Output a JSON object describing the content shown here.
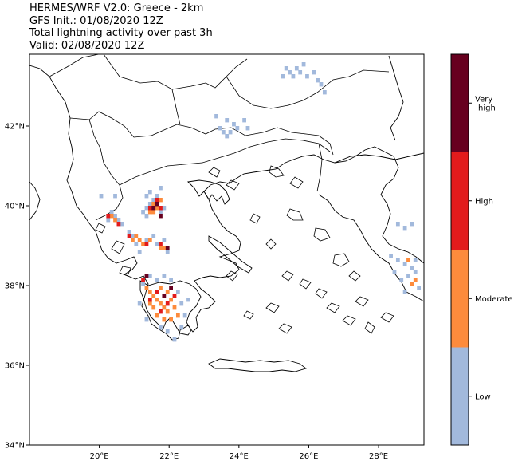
{
  "title": {
    "line1": "HERMES/WRF V2.0: Greece - 2km",
    "line2": "GFS Init.: 01/08/2020 12Z",
    "line3": "Total lightning activity over past 3h",
    "line4": "Valid: 02/08/2020 12Z"
  },
  "axes": {
    "lon_range": [
      18.0,
      29.3
    ],
    "lat_range": [
      34.0,
      43.8
    ],
    "lon_ticks": [
      {
        "value": 20,
        "label": "20°E"
      },
      {
        "value": 22,
        "label": "22°E"
      },
      {
        "value": 24,
        "label": "24°E"
      },
      {
        "value": 26,
        "label": "26°E"
      },
      {
        "value": 28,
        "label": "28°E"
      }
    ],
    "lat_ticks": [
      {
        "value": 34,
        "label": "34°N"
      },
      {
        "value": 36,
        "label": "36°N"
      },
      {
        "value": 38,
        "label": "38°N"
      },
      {
        "value": 40,
        "label": "40°N"
      },
      {
        "value": 42,
        "label": "42°N"
      }
    ]
  },
  "legend": {
    "placement": "right colorbar",
    "levels": [
      {
        "name": "low",
        "label": "Low",
        "color": "#a2b9dc"
      },
      {
        "name": "moderate",
        "label": "Moderate",
        "color": "#fd8b3c"
      },
      {
        "name": "high",
        "label": "High",
        "color": "#e21b1c"
      },
      {
        "name": "very-high",
        "label": "Very high",
        "color": "#67001f"
      }
    ]
  },
  "lightning_cells": [
    {
      "lon": 21.25,
      "lat": 39.85,
      "level": "low"
    },
    {
      "lon": 21.35,
      "lat": 39.95,
      "level": "low"
    },
    {
      "lon": 21.45,
      "lat": 40.05,
      "level": "low"
    },
    {
      "lon": 21.55,
      "lat": 40.15,
      "level": "low"
    },
    {
      "lon": 21.65,
      "lat": 40.25,
      "level": "low"
    },
    {
      "lon": 21.45,
      "lat": 40.35,
      "level": "low"
    },
    {
      "lon": 21.35,
      "lat": 40.25,
      "level": "low"
    },
    {
      "lon": 21.75,
      "lat": 39.85,
      "level": "low"
    },
    {
      "lon": 21.85,
      "lat": 39.95,
      "level": "low"
    },
    {
      "lon": 21.35,
      "lat": 39.75,
      "level": "low"
    },
    {
      "lon": 21.75,
      "lat": 40.45,
      "level": "low"
    },
    {
      "lon": 21.55,
      "lat": 40.05,
      "level": "moderate"
    },
    {
      "lon": 21.65,
      "lat": 39.95,
      "level": "moderate"
    },
    {
      "lon": 21.45,
      "lat": 39.85,
      "level": "moderate"
    },
    {
      "lon": 21.75,
      "lat": 40.15,
      "level": "moderate"
    },
    {
      "lon": 21.55,
      "lat": 39.85,
      "level": "moderate"
    },
    {
      "lon": 21.65,
      "lat": 40.15,
      "level": "high"
    },
    {
      "lon": 21.45,
      "lat": 39.95,
      "level": "high"
    },
    {
      "lon": 21.75,
      "lat": 39.95,
      "level": "high"
    },
    {
      "lon": 21.55,
      "lat": 39.95,
      "level": "very-high"
    },
    {
      "lon": 21.65,
      "lat": 40.05,
      "level": "very-high"
    },
    {
      "lon": 21.75,
      "lat": 39.75,
      "level": "very-high"
    },
    {
      "lon": 20.35,
      "lat": 39.85,
      "level": "low"
    },
    {
      "lon": 20.45,
      "lat": 39.75,
      "level": "low"
    },
    {
      "lon": 20.55,
      "lat": 39.65,
      "level": "low"
    },
    {
      "lon": 20.25,
      "lat": 39.65,
      "level": "low"
    },
    {
      "lon": 20.65,
      "lat": 39.55,
      "level": "low"
    },
    {
      "lon": 20.05,
      "lat": 40.25,
      "level": "low"
    },
    {
      "lon": 20.45,
      "lat": 40.25,
      "level": "low"
    },
    {
      "lon": 20.35,
      "lat": 39.75,
      "level": "moderate"
    },
    {
      "lon": 20.45,
      "lat": 39.65,
      "level": "moderate"
    },
    {
      "lon": 20.25,
      "lat": 39.75,
      "level": "high"
    },
    {
      "lon": 20.55,
      "lat": 39.55,
      "level": "high"
    },
    {
      "lon": 20.85,
      "lat": 39.35,
      "level": "low"
    },
    {
      "lon": 20.95,
      "lat": 39.25,
      "level": "low"
    },
    {
      "lon": 21.05,
      "lat": 39.05,
      "level": "low"
    },
    {
      "lon": 21.35,
      "lat": 39.15,
      "level": "low"
    },
    {
      "lon": 21.55,
      "lat": 39.25,
      "level": "low"
    },
    {
      "lon": 21.65,
      "lat": 39.05,
      "level": "low"
    },
    {
      "lon": 21.85,
      "lat": 39.15,
      "level": "low"
    },
    {
      "lon": 21.95,
      "lat": 38.85,
      "level": "low"
    },
    {
      "lon": 21.15,
      "lat": 38.85,
      "level": "low"
    },
    {
      "lon": 20.95,
      "lat": 39.15,
      "level": "moderate"
    },
    {
      "lon": 21.05,
      "lat": 39.25,
      "level": "moderate"
    },
    {
      "lon": 21.15,
      "lat": 39.15,
      "level": "moderate"
    },
    {
      "lon": 21.25,
      "lat": 39.05,
      "level": "moderate"
    },
    {
      "lon": 21.45,
      "lat": 39.15,
      "level": "moderate"
    },
    {
      "lon": 21.75,
      "lat": 38.95,
      "level": "moderate"
    },
    {
      "lon": 21.85,
      "lat": 38.95,
      "level": "moderate"
    },
    {
      "lon": 20.85,
      "lat": 39.25,
      "level": "high"
    },
    {
      "lon": 21.35,
      "lat": 39.05,
      "level": "high"
    },
    {
      "lon": 21.75,
      "lat": 39.05,
      "level": "high"
    },
    {
      "lon": 21.95,
      "lat": 38.95,
      "level": "very-high"
    },
    {
      "lon": 21.25,
      "lat": 38.05,
      "level": "low"
    },
    {
      "lon": 21.45,
      "lat": 38.25,
      "level": "low"
    },
    {
      "lon": 21.65,
      "lat": 38.15,
      "level": "low"
    },
    {
      "lon": 21.85,
      "lat": 38.25,
      "level": "low"
    },
    {
      "lon": 22.05,
      "lat": 38.15,
      "level": "low"
    },
    {
      "lon": 22.25,
      "lat": 37.85,
      "level": "low"
    },
    {
      "lon": 22.35,
      "lat": 37.55,
      "level": "low"
    },
    {
      "lon": 22.45,
      "lat": 37.25,
      "level": "low"
    },
    {
      "lon": 22.35,
      "lat": 36.95,
      "level": "low"
    },
    {
      "lon": 21.95,
      "lat": 36.85,
      "level": "low"
    },
    {
      "lon": 21.75,
      "lat": 36.95,
      "level": "low"
    },
    {
      "lon": 21.35,
      "lat": 37.15,
      "level": "low"
    },
    {
      "lon": 21.15,
      "lat": 37.55,
      "level": "low"
    },
    {
      "lon": 22.55,
      "lat": 37.65,
      "level": "low"
    },
    {
      "lon": 22.15,
      "lat": 36.65,
      "level": "low"
    },
    {
      "lon": 21.35,
      "lat": 37.95,
      "level": "moderate"
    },
    {
      "lon": 21.45,
      "lat": 37.85,
      "level": "moderate"
    },
    {
      "lon": 21.55,
      "lat": 37.75,
      "level": "moderate"
    },
    {
      "lon": 21.65,
      "lat": 37.65,
      "level": "moderate"
    },
    {
      "lon": 21.75,
      "lat": 37.55,
      "level": "moderate"
    },
    {
      "lon": 21.85,
      "lat": 37.45,
      "level": "moderate"
    },
    {
      "lon": 21.95,
      "lat": 37.35,
      "level": "moderate"
    },
    {
      "lon": 22.05,
      "lat": 37.65,
      "level": "moderate"
    },
    {
      "lon": 22.15,
      "lat": 37.45,
      "level": "moderate"
    },
    {
      "lon": 21.55,
      "lat": 37.45,
      "level": "moderate"
    },
    {
      "lon": 21.45,
      "lat": 37.55,
      "level": "moderate"
    },
    {
      "lon": 21.65,
      "lat": 37.25,
      "level": "moderate"
    },
    {
      "lon": 21.85,
      "lat": 37.15,
      "level": "moderate"
    },
    {
      "lon": 22.05,
      "lat": 37.15,
      "level": "moderate"
    },
    {
      "lon": 21.95,
      "lat": 37.85,
      "level": "moderate"
    },
    {
      "lon": 21.75,
      "lat": 37.95,
      "level": "moderate"
    },
    {
      "lon": 22.25,
      "lat": 37.25,
      "level": "moderate"
    },
    {
      "lon": 21.25,
      "lat": 38.15,
      "level": "high"
    },
    {
      "lon": 21.45,
      "lat": 37.65,
      "level": "high"
    },
    {
      "lon": 21.65,
      "lat": 37.85,
      "level": "high"
    },
    {
      "lon": 21.95,
      "lat": 37.55,
      "level": "high"
    },
    {
      "lon": 22.15,
      "lat": 37.75,
      "level": "high"
    },
    {
      "lon": 21.75,
      "lat": 37.35,
      "level": "high"
    },
    {
      "lon": 21.35,
      "lat": 38.25,
      "level": "very-high"
    },
    {
      "lon": 21.85,
      "lat": 37.75,
      "level": "very-high"
    },
    {
      "lon": 22.05,
      "lat": 37.95,
      "level": "very-high"
    },
    {
      "lon": 23.45,
      "lat": 41.95,
      "level": "low"
    },
    {
      "lon": 23.55,
      "lat": 41.85,
      "level": "low"
    },
    {
      "lon": 23.65,
      "lat": 41.75,
      "level": "low"
    },
    {
      "lon": 23.75,
      "lat": 41.85,
      "level": "low"
    },
    {
      "lon": 23.85,
      "lat": 42.05,
      "level": "low"
    },
    {
      "lon": 23.95,
      "lat": 41.95,
      "level": "low"
    },
    {
      "lon": 23.35,
      "lat": 42.25,
      "level": "low"
    },
    {
      "lon": 24.15,
      "lat": 42.15,
      "level": "low"
    },
    {
      "lon": 24.25,
      "lat": 41.95,
      "level": "low"
    },
    {
      "lon": 23.65,
      "lat": 42.15,
      "level": "low"
    },
    {
      "lon": 25.45,
      "lat": 43.35,
      "level": "low"
    },
    {
      "lon": 25.55,
      "lat": 43.25,
      "level": "low"
    },
    {
      "lon": 25.65,
      "lat": 43.45,
      "level": "low"
    },
    {
      "lon": 25.75,
      "lat": 43.35,
      "level": "low"
    },
    {
      "lon": 25.85,
      "lat": 43.55,
      "level": "low"
    },
    {
      "lon": 25.35,
      "lat": 43.45,
      "level": "low"
    },
    {
      "lon": 25.95,
      "lat": 43.25,
      "level": "low"
    },
    {
      "lon": 26.25,
      "lat": 43.15,
      "level": "low"
    },
    {
      "lon": 26.35,
      "lat": 43.05,
      "level": "low"
    },
    {
      "lon": 26.45,
      "lat": 42.85,
      "level": "low"
    },
    {
      "lon": 26.15,
      "lat": 43.35,
      "level": "low"
    },
    {
      "lon": 25.25,
      "lat": 43.25,
      "level": "low"
    },
    {
      "lon": 28.35,
      "lat": 38.75,
      "level": "low"
    },
    {
      "lon": 28.55,
      "lat": 38.65,
      "level": "low"
    },
    {
      "lon": 28.75,
      "lat": 38.55,
      "level": "low"
    },
    {
      "lon": 28.95,
      "lat": 38.45,
      "level": "low"
    },
    {
      "lon": 29.05,
      "lat": 38.65,
      "level": "low"
    },
    {
      "lon": 28.85,
      "lat": 38.25,
      "level": "low"
    },
    {
      "lon": 28.65,
      "lat": 38.15,
      "level": "low"
    },
    {
      "lon": 28.45,
      "lat": 38.35,
      "level": "low"
    },
    {
      "lon": 28.75,
      "lat": 37.85,
      "level": "low"
    },
    {
      "lon": 29.15,
      "lat": 37.95,
      "level": "low"
    },
    {
      "lon": 28.55,
      "lat": 39.55,
      "level": "low"
    },
    {
      "lon": 28.75,
      "lat": 39.45,
      "level": "low"
    },
    {
      "lon": 28.95,
      "lat": 39.55,
      "level": "low"
    },
    {
      "lon": 29.05,
      "lat": 38.35,
      "level": "low"
    },
    {
      "lon": 28.95,
      "lat": 38.05,
      "level": "moderate"
    },
    {
      "lon": 29.05,
      "lat": 38.15,
      "level": "moderate"
    },
    {
      "lon": 28.85,
      "lat": 38.65,
      "level": "moderate"
    }
  ]
}
